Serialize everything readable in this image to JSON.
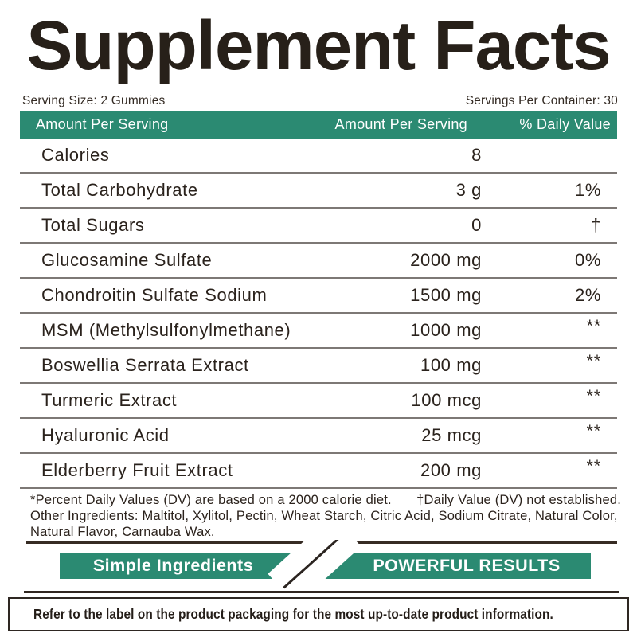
{
  "title": "Supplement Facts",
  "serving": {
    "size_label": "Serving Size: 2 Gummies",
    "per_container_label": "Servings Per Container: 30"
  },
  "header": {
    "col1": "Amount Per Serving",
    "col2": "Amount Per Serving",
    "col3": "% Daily Value"
  },
  "rows": [
    {
      "name": "Calories",
      "amount": "8",
      "dv": ""
    },
    {
      "name": "Total Carbohydrate",
      "amount": "3 g",
      "dv": "1%"
    },
    {
      "name": "Total Sugars",
      "amount": "0",
      "dv": "†"
    },
    {
      "name": "Glucosamine Sulfate",
      "amount": "2000 mg",
      "dv": "0%"
    },
    {
      "name": "Chondroitin Sulfate Sodium",
      "amount": "1500 mg",
      "dv": "2%"
    },
    {
      "name": "MSM (Methylsulfonylmethane)",
      "amount": "1000 mg",
      "dv": "**"
    },
    {
      "name": "Boswellia Serrata Extract",
      "amount": "100 mg",
      "dv": "**"
    },
    {
      "name": "Turmeric Extract",
      "amount": "100 mcg",
      "dv": "**"
    },
    {
      "name": "Hyaluronic Acid",
      "amount": "25 mcg",
      "dv": "**"
    },
    {
      "name": "Elderberry Fruit Extract",
      "amount": "200 mg",
      "dv": "**"
    }
  ],
  "footnotes": {
    "dv_note": "*Percent Daily Values (DV) are based on a 2000 calorie diet.",
    "not_established_note": "†Daily Value (DV) not established.",
    "other_ingredients": "Other Ingredients: Maltitol, Xylitol, Pectin, Wheat Starch, Citric Acid, Sodium Citrate, Natural Color, Natural Flavor, Carnauba Wax."
  },
  "banner": {
    "left": "Simple Ingredients",
    "right": "POWERFUL RESULTS"
  },
  "disclaimer": "Refer to the label on the product packaging for the most up-to-date product information.",
  "colors": {
    "teal": "#2b8a72",
    "ink": "#2b211b",
    "divider": "#7d7875"
  }
}
